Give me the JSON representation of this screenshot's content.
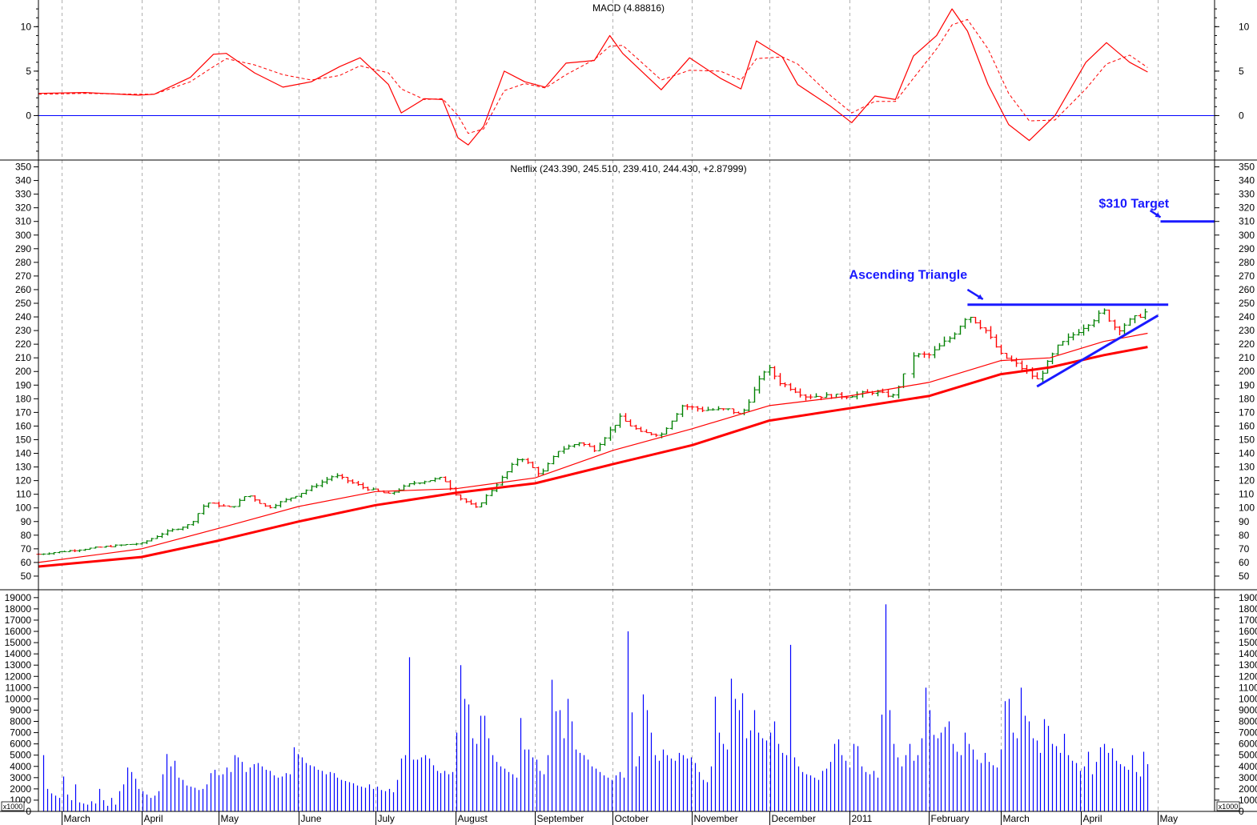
{
  "chart_data": {
    "type": "stock",
    "colors": {
      "price_up": "#008000",
      "price_down": "#ff0000",
      "moving_average": "#ff0000",
      "macd_line": "#ff0000",
      "macd_signal": "#ff0000",
      "macd_zero_line": "#0000ff",
      "volume": "#0000ff",
      "annotation": "#1a1aff",
      "grid": "#b0b0b0"
    },
    "x_axis": {
      "month_labels": [
        "March",
        "April",
        "May",
        "June",
        "July",
        "August",
        "September",
        "October",
        "November",
        "December",
        "2011",
        "February",
        "March",
        "April",
        "May"
      ],
      "tick_dates": [
        "2010-03-01",
        "2010-04-01",
        "2010-05-01",
        "2010-06-01",
        "2010-07-01",
        "2010-08-01",
        "2010-09-01",
        "2010-10-01",
        "2010-11-01",
        "2010-12-01",
        "2011-01-01",
        "2011-02-01",
        "2011-03-01",
        "2011-04-01",
        "2011-05-01"
      ],
      "range": [
        "2010-02-20",
        "2011-05-23"
      ],
      "grid": true
    },
    "macd": {
      "title": "MACD (4.88816)",
      "ylim": [
        -5,
        13
      ],
      "ticks": [
        0,
        5,
        10
      ],
      "points": [
        [
          "2010-02-20",
          2.5,
          2.4
        ],
        [
          "2010-03-10",
          2.6,
          2.5
        ],
        [
          "2010-03-31",
          2.3,
          2.4
        ],
        [
          "2010-04-06",
          2.4,
          2.4
        ],
        [
          "2010-04-20",
          4.3,
          3.8
        ],
        [
          "2010-04-29",
          6.9,
          5.5
        ],
        [
          "2010-05-04",
          7.0,
          6.4
        ],
        [
          "2010-05-15",
          4.8,
          5.7
        ],
        [
          "2010-05-26",
          3.2,
          4.6
        ],
        [
          "2010-06-06",
          3.8,
          4.0
        ],
        [
          "2010-06-17",
          5.5,
          4.5
        ],
        [
          "2010-06-25",
          6.5,
          5.6
        ],
        [
          "2010-07-06",
          3.5,
          4.8
        ],
        [
          "2010-07-11",
          0.3,
          3.0
        ],
        [
          "2010-07-20",
          1.9,
          1.8
        ],
        [
          "2010-07-27",
          1.8,
          1.9
        ],
        [
          "2010-08-02",
          -2.5,
          0.0
        ],
        [
          "2010-08-06",
          -3.3,
          -2.0
        ],
        [
          "2010-08-12",
          -1.2,
          -1.5
        ],
        [
          "2010-08-20",
          5.0,
          2.8
        ],
        [
          "2010-08-28",
          3.8,
          3.6
        ],
        [
          "2010-09-05",
          3.2,
          3.1
        ],
        [
          "2010-09-13",
          5.9,
          4.6
        ],
        [
          "2010-09-24",
          6.2,
          6.3
        ],
        [
          "2010-09-30",
          9.0,
          7.8
        ],
        [
          "2010-10-05",
          7.0,
          7.9
        ],
        [
          "2010-10-20",
          2.9,
          4.0
        ],
        [
          "2010-10-31",
          6.5,
          5.1
        ],
        [
          "2010-11-12",
          4.2,
          5.0
        ],
        [
          "2010-11-20",
          3.0,
          4.0
        ],
        [
          "2010-11-26",
          8.4,
          6.4
        ],
        [
          "2010-12-06",
          6.6,
          6.6
        ],
        [
          "2010-12-12",
          3.5,
          5.8
        ],
        [
          "2010-12-25",
          1.0,
          2.2
        ],
        [
          "2011-01-02",
          -0.8,
          0.3
        ],
        [
          "2011-01-11",
          2.2,
          1.6
        ],
        [
          "2011-01-19",
          1.8,
          1.6
        ],
        [
          "2011-01-26",
          6.7,
          4.2
        ],
        [
          "2011-02-04",
          9.0,
          7.5
        ],
        [
          "2011-02-10",
          12.0,
          10.2
        ],
        [
          "2011-02-16",
          9.5,
          10.8
        ],
        [
          "2011-02-24",
          3.5,
          7.5
        ],
        [
          "2011-03-04",
          -1.0,
          2.5
        ],
        [
          "2011-03-12",
          -2.8,
          -0.6
        ],
        [
          "2011-03-22",
          0.0,
          -0.5
        ],
        [
          "2011-04-03",
          6.0,
          3.0
        ],
        [
          "2011-04-11",
          8.2,
          5.8
        ],
        [
          "2011-04-20",
          6.0,
          6.8
        ],
        [
          "2011-04-27",
          4.9,
          5.4
        ]
      ]
    },
    "price": {
      "title": "Netflix (243.390, 245.510, 239.410, 244.430, +2.87999)",
      "ylim": [
        40,
        355
      ],
      "ticks": [
        50,
        60,
        70,
        80,
        90,
        100,
        110,
        120,
        130,
        140,
        150,
        160,
        170,
        180,
        190,
        200,
        210,
        220,
        230,
        240,
        250,
        260,
        270,
        280,
        290,
        300,
        310,
        320,
        330,
        340,
        350
      ],
      "bar_interval_days": 2,
      "close_path": [
        [
          "2010-02-20",
          66
        ],
        [
          "2010-03-01",
          68
        ],
        [
          "2010-03-20",
          72
        ],
        [
          "2010-04-01",
          74
        ],
        [
          "2010-04-10",
          82
        ],
        [
          "2010-04-20",
          88
        ],
        [
          "2010-04-26",
          104
        ],
        [
          "2010-05-06",
          100
        ],
        [
          "2010-05-12",
          110
        ],
        [
          "2010-05-20",
          100
        ],
        [
          "2010-06-01",
          110
        ],
        [
          "2010-06-15",
          124
        ],
        [
          "2010-06-26",
          115
        ],
        [
          "2010-07-06",
          110
        ],
        [
          "2010-07-15",
          118
        ],
        [
          "2010-07-27",
          122
        ],
        [
          "2010-08-02",
          108
        ],
        [
          "2010-08-09",
          100
        ],
        [
          "2010-08-20",
          124
        ],
        [
          "2010-08-26",
          138
        ],
        [
          "2010-09-03",
          124
        ],
        [
          "2010-09-10",
          142
        ],
        [
          "2010-09-18",
          148
        ],
        [
          "2010-09-24",
          143
        ],
        [
          "2010-10-04",
          166
        ],
        [
          "2010-10-12",
          155
        ],
        [
          "2010-10-20",
          154
        ],
        [
          "2010-10-28",
          175
        ],
        [
          "2010-11-05",
          172
        ],
        [
          "2010-11-15",
          172
        ],
        [
          "2010-11-20",
          168
        ],
        [
          "2010-11-30",
          204
        ],
        [
          "2010-12-05",
          192
        ],
        [
          "2010-12-15",
          182
        ],
        [
          "2010-12-31",
          182
        ],
        [
          "2011-01-10",
          185
        ],
        [
          "2011-01-18",
          182
        ],
        [
          "2011-01-26",
          212
        ],
        [
          "2011-02-01",
          212
        ],
        [
          "2011-02-10",
          226
        ],
        [
          "2011-02-16",
          242
        ],
        [
          "2011-02-23",
          230
        ],
        [
          "2011-03-01",
          212
        ],
        [
          "2011-03-08",
          204
        ],
        [
          "2011-03-15",
          194
        ],
        [
          "2011-03-23",
          218
        ],
        [
          "2011-03-31",
          230
        ],
        [
          "2011-04-07",
          240
        ],
        [
          "2011-04-10",
          244
        ],
        [
          "2011-04-15",
          230
        ],
        [
          "2011-04-19",
          236
        ],
        [
          "2011-04-27",
          244.43
        ]
      ],
      "moving_averages": [
        {
          "points": [
            [
              "2010-02-20",
              60
            ],
            [
              "2010-04-01",
              70
            ],
            [
              "2010-05-01",
              85
            ],
            [
              "2010-06-01",
              101
            ],
            [
              "2010-07-01",
              112
            ],
            [
              "2010-08-01",
              114
            ],
            [
              "2010-09-01",
              122
            ],
            [
              "2010-10-01",
              142
            ],
            [
              "2010-11-01",
              158
            ],
            [
              "2010-12-01",
              175
            ],
            [
              "2011-01-01",
              182
            ],
            [
              "2011-02-01",
              192
            ],
            [
              "2011-03-01",
              208
            ],
            [
              "2011-03-20",
              210
            ],
            [
              "2011-04-10",
              222
            ],
            [
              "2011-04-27",
              228
            ]
          ]
        },
        {
          "points": [
            [
              "2010-02-20",
              57
            ],
            [
              "2010-04-01",
              64
            ],
            [
              "2010-05-01",
              76
            ],
            [
              "2010-06-01",
              90
            ],
            [
              "2010-07-01",
              102
            ],
            [
              "2010-08-01",
              111
            ],
            [
              "2010-09-01",
              118
            ],
            [
              "2010-10-01",
              132
            ],
            [
              "2010-11-01",
              146
            ],
            [
              "2010-12-01",
              164
            ],
            [
              "2011-01-01",
              173
            ],
            [
              "2011-02-01",
              182
            ],
            [
              "2011-03-01",
              198
            ],
            [
              "2011-03-20",
              203
            ],
            [
              "2011-04-10",
              212
            ],
            [
              "2011-04-27",
              218
            ]
          ]
        }
      ],
      "annotations": [
        {
          "text": "Ascending Triangle",
          "x": "2011-01-01",
          "y": 268
        },
        {
          "text": "$310 Target",
          "x": "2011-04-08",
          "y": 320
        }
      ],
      "lines": [
        {
          "from": [
            "2011-02-16",
            249
          ],
          "to": [
            "2011-05-05",
            249
          ],
          "role": "resistance"
        },
        {
          "from": [
            "2011-03-15",
            189
          ],
          "to": [
            "2011-05-01",
            241
          ],
          "role": "rising support"
        },
        {
          "from": [
            "2011-05-02",
            310
          ],
          "to": [
            "2011-05-23",
            310
          ],
          "role": "target"
        }
      ],
      "arrows": [
        {
          "from": [
            "2011-02-16",
            260
          ],
          "to": [
            "2011-02-22",
            253
          ]
        },
        {
          "from": [
            "2011-04-28",
            318
          ],
          "to": [
            "2011-05-02",
            313
          ]
        }
      ]
    },
    "volume": {
      "unit_label": "x1000",
      "ylim": [
        0,
        19700
      ],
      "ticks": [
        0,
        1000,
        2000,
        3000,
        4000,
        5000,
        6000,
        7000,
        8000,
        9000,
        10000,
        11000,
        12000,
        13000,
        14000,
        15000,
        16000,
        17000,
        18000,
        19000
      ],
      "bar_interval_days": 2,
      "values": [
        5000,
        2000,
        1600,
        1400,
        1200,
        3100,
        1500,
        1000,
        2400,
        800,
        700,
        600,
        900,
        700,
        2000,
        1000,
        500,
        1200,
        600,
        1800,
        2400,
        3900,
        3500,
        2900,
        2000,
        1800,
        1500,
        1200,
        1400,
        1800,
        3300,
        5100,
        4000,
        4500,
        3000,
        2800,
        2300,
        2200,
        2100,
        1900,
        2000,
        2400,
        3400,
        3700,
        3200,
        3300,
        3900,
        3500,
        5000,
        4800,
        4400,
        3500,
        3900,
        4200,
        4300,
        4000,
        3700,
        3600,
        3200,
        3000,
        3100,
        3400,
        3300,
        5700,
        5100,
        4800,
        4300,
        4100,
        4000,
        3700,
        3600,
        3300,
        3500,
        3400,
        3000,
        2800,
        2700,
        2600,
        2500,
        2300,
        2200,
        2100,
        2400,
        2000,
        2200,
        1900,
        1800,
        2000,
        1700,
        2800,
        4700,
        5000,
        13700,
        4600,
        4600,
        4800,
        5000,
        4700,
        4100,
        3600,
        3400,
        3600,
        3300,
        3500,
        7000,
        13000,
        10000,
        9500,
        6500,
        6000,
        8500,
        8500,
        6500,
        5000,
        4400,
        4000,
        3800,
        3500,
        3300,
        3000,
        8300,
        5500,
        5500,
        4800,
        4600,
        3600,
        3300,
        5000,
        11700,
        8900,
        9000,
        6500,
        10000,
        8000,
        5500,
        5200,
        5000,
        4600,
        4000,
        3800,
        3500,
        3200,
        3000,
        2800,
        3200,
        3500,
        3000,
        16000,
        8800,
        4000,
        4900,
        10400,
        9000,
        7000,
        5000,
        4500,
        5500,
        5000,
        4700,
        4500,
        5200,
        5000,
        4700,
        4800,
        4300,
        3500,
        2800,
        2600,
        4000,
        10200,
        7000,
        6000,
        5500,
        11800,
        10000,
        9000,
        10500,
        6500,
        7200,
        9000,
        7000,
        6500,
        6300,
        7000,
        8000,
        6000,
        5200,
        5000,
        14800,
        4800,
        4000,
        3500,
        3300,
        3200,
        3000,
        2800,
        3600,
        3800,
        4400,
        6000,
        6400,
        5000,
        4500,
        3900,
        6000,
        5800,
        4000,
        3500,
        3300,
        3600,
        3000,
        8600,
        18400,
        9000,
        6000,
        4800,
        4000,
        5000,
        6000,
        4500,
        5000,
        6500,
        11000,
        9000,
        6800,
        6500,
        7000,
        7500,
        8000,
        6000,
        5300,
        5000,
        7000,
        6000,
        5500,
        4600,
        4300,
        5200,
        4400,
        4100,
        3900,
        5500,
        9800,
        10000,
        7000,
        6500,
        11000,
        8500,
        8000,
        6500,
        6300,
        5200,
        8200,
        7600,
        6000,
        5800,
        5200,
        6900,
        5000,
        4500,
        4300,
        3600,
        4000,
        5300,
        3300,
        4400,
        5700,
        6000,
        5200,
        5600,
        4500,
        4200,
        4000,
        3700,
        5000,
        3500,
        3100,
        5300,
        4200
      ]
    }
  }
}
